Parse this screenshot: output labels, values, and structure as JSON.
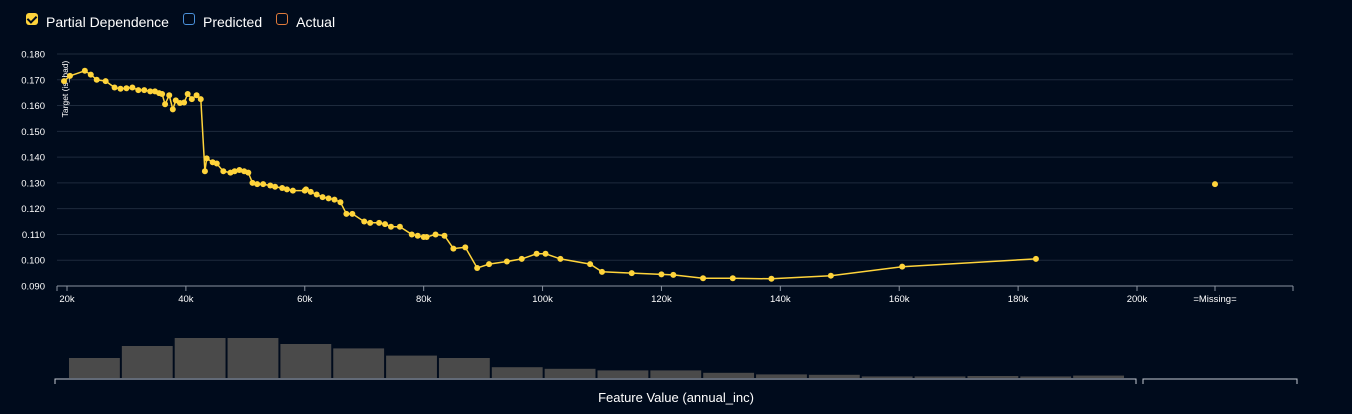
{
  "legend": [
    {
      "label": "Partial Dependence",
      "color": "#ffd43b",
      "checked": true
    },
    {
      "label": "Predicted",
      "color": "#4a90d9",
      "checked": false
    },
    {
      "label": "Actual",
      "color": "#e07b3c",
      "checked": false
    }
  ],
  "chart_data": {
    "type": "line",
    "ylabel": "Target (is_bad)",
    "xlabel": "Feature Value (annual_inc)",
    "ylim": [
      0.09,
      0.18
    ],
    "yticks": [
      "0.090",
      "0.100",
      "0.110",
      "0.120",
      "0.130",
      "0.140",
      "0.150",
      "0.160",
      "0.170",
      "0.180"
    ],
    "xlim": [
      19000,
      225000
    ],
    "xticks": [
      {
        "value": 20000,
        "label": "20k"
      },
      {
        "value": 40000,
        "label": "40k"
      },
      {
        "value": 60000,
        "label": "60k"
      },
      {
        "value": 80000,
        "label": "80k"
      },
      {
        "value": 100000,
        "label": "100k"
      },
      {
        "value": 120000,
        "label": "120k"
      },
      {
        "value": 140000,
        "label": "140k"
      },
      {
        "value": 160000,
        "label": "160k"
      },
      {
        "value": 180000,
        "label": "180k"
      },
      {
        "value": 200000,
        "label": "200k"
      }
    ],
    "missing_label": "=Missing=",
    "missing_value": 0.1295,
    "grid": true,
    "series": [
      {
        "color": "#ffd43b",
        "points": [
          [
            19500,
            0.1695
          ],
          [
            20500,
            0.1715
          ],
          [
            23000,
            0.1735
          ],
          [
            24000,
            0.172
          ],
          [
            25000,
            0.17
          ],
          [
            26500,
            0.1695
          ],
          [
            28000,
            0.167
          ],
          [
            29000,
            0.1665
          ],
          [
            30000,
            0.1667
          ],
          [
            31000,
            0.167
          ],
          [
            32000,
            0.166
          ],
          [
            33000,
            0.166
          ],
          [
            34000,
            0.1655
          ],
          [
            34800,
            0.1655
          ],
          [
            35500,
            0.1648
          ],
          [
            36000,
            0.1645
          ],
          [
            36500,
            0.1605
          ],
          [
            37200,
            0.164
          ],
          [
            37800,
            0.1585
          ],
          [
            38300,
            0.162
          ],
          [
            39000,
            0.161
          ],
          [
            39700,
            0.1612
          ],
          [
            40300,
            0.1645
          ],
          [
            41000,
            0.1625
          ],
          [
            41800,
            0.164
          ],
          [
            42500,
            0.1625
          ],
          [
            43200,
            0.1345
          ],
          [
            43500,
            0.1395
          ],
          [
            44500,
            0.138
          ],
          [
            45200,
            0.1375
          ],
          [
            46300,
            0.1345
          ],
          [
            47500,
            0.134
          ],
          [
            48200,
            0.1345
          ],
          [
            49000,
            0.135
          ],
          [
            49800,
            0.1345
          ],
          [
            50500,
            0.134
          ],
          [
            51200,
            0.13
          ],
          [
            52000,
            0.1295
          ],
          [
            53000,
            0.1295
          ],
          [
            54200,
            0.129
          ],
          [
            55000,
            0.1285
          ],
          [
            56200,
            0.128
          ],
          [
            57000,
            0.1275
          ],
          [
            58000,
            0.127
          ],
          [
            60000,
            0.127
          ],
          [
            60200,
            0.1275
          ],
          [
            61000,
            0.1265
          ],
          [
            62000,
            0.1255
          ],
          [
            63000,
            0.1245
          ],
          [
            64000,
            0.124
          ],
          [
            65000,
            0.1235
          ],
          [
            66000,
            0.1225
          ],
          [
            67000,
            0.118
          ],
          [
            68000,
            0.118
          ],
          [
            70000,
            0.115
          ],
          [
            71000,
            0.1145
          ],
          [
            72500,
            0.1145
          ],
          [
            73500,
            0.114
          ],
          [
            74500,
            0.113
          ],
          [
            76000,
            0.113
          ],
          [
            78000,
            0.11
          ],
          [
            79000,
            0.1095
          ],
          [
            80000,
            0.109
          ],
          [
            80500,
            0.109
          ],
          [
            82000,
            0.11
          ],
          [
            83500,
            0.1095
          ],
          [
            85000,
            0.1045
          ],
          [
            87000,
            0.105
          ],
          [
            89000,
            0.097
          ],
          [
            91000,
            0.0985
          ],
          [
            94000,
            0.0995
          ],
          [
            96500,
            0.1005
          ],
          [
            99000,
            0.1025
          ],
          [
            100500,
            0.1025
          ],
          [
            103000,
            0.1005
          ],
          [
            108000,
            0.0985
          ],
          [
            110000,
            0.0955
          ],
          [
            115000,
            0.095
          ],
          [
            120000,
            0.0945
          ],
          [
            122000,
            0.0943
          ],
          [
            127000,
            0.093
          ],
          [
            132000,
            0.093
          ],
          [
            138500,
            0.0928
          ],
          [
            148500,
            0.094
          ],
          [
            160500,
            0.0975
          ],
          [
            183000,
            0.1005
          ]
        ]
      }
    ],
    "histogram": {
      "bar_color": "#4a4a4a",
      "values": [
        0.5,
        0.8,
        1.0,
        1.0,
        0.85,
        0.74,
        0.56,
        0.5,
        0.27,
        0.23,
        0.19,
        0.19,
        0.13,
        0.09,
        0.08,
        0.04,
        0.04,
        0.05,
        0.04,
        0.06
      ]
    }
  }
}
